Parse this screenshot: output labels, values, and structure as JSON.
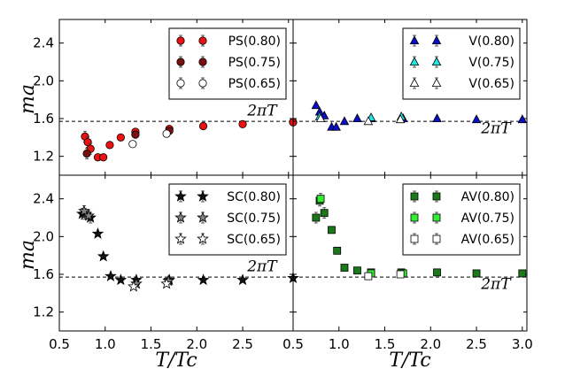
{
  "chart_data": [
    {
      "id": "tl",
      "type": "scatter",
      "ylabel": "ma",
      "xlabel": "",
      "xlim": [
        0.5,
        3.05
      ],
      "ylim": [
        1.0,
        2.65
      ],
      "xticks": [],
      "xtick_labels": [],
      "yticks": [
        1.2,
        1.6,
        2.0,
        2.4
      ],
      "ytick_labels": [
        "1.2",
        "1.6",
        "2.0",
        "2.4"
      ],
      "ref_line": {
        "y": 1.5708,
        "label": "2πT",
        "label_x": 2.55,
        "label_y": 1.635
      },
      "series": [
        {
          "name": "PS(0.80)",
          "marker": "circle",
          "color": "#ee1111",
          "points": [
            [
              0.78,
              1.41
            ],
            [
              0.81,
              1.35
            ],
            [
              0.84,
              1.28
            ],
            [
              0.92,
              1.19
            ],
            [
              0.98,
              1.19
            ],
            [
              1.05,
              1.32
            ],
            [
              1.17,
              1.4
            ],
            [
              1.33,
              1.46
            ],
            [
              1.7,
              1.49
            ],
            [
              2.07,
              1.52
            ],
            [
              2.5,
              1.54
            ],
            [
              3.05,
              1.56
            ]
          ]
        },
        {
          "name": "PS(0.75)",
          "marker": "circle",
          "color": "#7a1010",
          "points": [
            [
              0.8,
              1.23
            ],
            [
              1.33,
              1.43
            ],
            [
              1.7,
              1.47
            ]
          ]
        },
        {
          "name": "PS(0.65)",
          "marker": "circle",
          "color": "#ffffff",
          "points": [
            [
              1.3,
              1.33
            ],
            [
              1.67,
              1.44
            ]
          ]
        }
      ]
    },
    {
      "id": "tr",
      "type": "scatter",
      "ylabel": "",
      "xlabel": "",
      "xlim": [
        0.5,
        3.05
      ],
      "ylim": [
        1.0,
        2.65
      ],
      "xticks": [],
      "xtick_labels": [],
      "yticks": [],
      "ytick_labels": [],
      "ref_line": {
        "y": 1.5708,
        "label": "2πT",
        "label_x": 2.55,
        "label_y": 1.445
      },
      "series": [
        {
          "name": "V(0.80)",
          "marker": "triangle",
          "color": "#0b10c8",
          "points": [
            [
              0.75,
              1.74
            ],
            [
              0.79,
              1.67
            ],
            [
              0.84,
              1.63
            ],
            [
              0.92,
              1.51
            ],
            [
              0.97,
              1.51
            ],
            [
              1.06,
              1.57
            ],
            [
              1.2,
              1.6
            ],
            [
              1.35,
              1.6
            ],
            [
              1.7,
              1.6
            ],
            [
              2.07,
              1.6
            ],
            [
              2.5,
              1.59
            ],
            [
              3.0,
              1.59
            ]
          ]
        },
        {
          "name": "V(0.75)",
          "marker": "triangle",
          "color": "#22e6e6",
          "points": [
            [
              0.79,
              1.62
            ],
            [
              1.35,
              1.61
            ],
            [
              1.68,
              1.62
            ]
          ]
        },
        {
          "name": "V(0.65)",
          "marker": "triangle",
          "color": "#ffffff",
          "points": [
            [
              0.8,
              1.6
            ],
            [
              1.32,
              1.57
            ],
            [
              1.67,
              1.59
            ]
          ]
        }
      ]
    },
    {
      "id": "bl",
      "type": "scatter",
      "ylabel": "ma",
      "xlabel": "T/Tc",
      "xlim": [
        0.5,
        3.05
      ],
      "ylim": [
        1.0,
        2.65
      ],
      "xticks": [
        0.5,
        1.0,
        1.5,
        2.0,
        2.5
      ],
      "xtick_labels": [
        "0.5",
        "1.0",
        "1.5",
        "2.0",
        "2.5"
      ],
      "yticks": [
        1.2,
        1.6,
        2.0,
        2.4
      ],
      "ytick_labels": [
        "1.2",
        "1.6",
        "2.0",
        "2.4"
      ],
      "ref_line": {
        "y": 1.5708,
        "label": "2πT",
        "label_x": 2.55,
        "label_y": 1.635
      },
      "series": [
        {
          "name": "SC(0.80)",
          "marker": "star",
          "color": "#111111",
          "points": [
            [
              0.75,
              2.24
            ],
            [
              0.78,
              2.24
            ],
            [
              0.84,
              2.2
            ],
            [
              0.92,
              2.03
            ],
            [
              0.98,
              1.79
            ],
            [
              1.06,
              1.58
            ],
            [
              1.17,
              1.54
            ],
            [
              1.34,
              1.54
            ],
            [
              1.7,
              1.54
            ],
            [
              2.07,
              1.54
            ],
            [
              2.5,
              1.54
            ],
            [
              3.05,
              1.56
            ]
          ]
        },
        {
          "name": "SC(0.75)",
          "marker": "star",
          "color": "#808080",
          "points": [
            [
              0.77,
              2.27
            ],
            [
              0.82,
              2.22
            ],
            [
              1.34,
              1.5
            ],
            [
              1.69,
              1.53
            ]
          ]
        },
        {
          "name": "SC(0.65)",
          "marker": "star",
          "color": "#ffffff",
          "points": [
            [
              1.31,
              1.47
            ],
            [
              1.67,
              1.5
            ]
          ]
        }
      ]
    },
    {
      "id": "br",
      "type": "scatter",
      "ylabel": "",
      "xlabel": "T/Tc",
      "xlim": [
        0.5,
        3.05
      ],
      "ylim": [
        1.0,
        2.65
      ],
      "xticks": [
        0.5,
        1.0,
        1.5,
        2.0,
        2.5,
        3.0
      ],
      "xtick_labels": [
        "0.5",
        "1.0",
        "1.5",
        "2.0",
        "2.5",
        "3.0"
      ],
      "yticks": [],
      "ytick_labels": [],
      "ref_line": {
        "y": 1.5708,
        "label": "2πT",
        "label_x": 2.55,
        "label_y": 1.445
      },
      "series": [
        {
          "name": "AV(0.80)",
          "marker": "square",
          "color": "#1a7a1a",
          "points": [
            [
              0.75,
              2.2
            ],
            [
              0.79,
              2.38
            ],
            [
              0.84,
              2.25
            ],
            [
              0.92,
              2.07
            ],
            [
              0.98,
              1.85
            ],
            [
              1.06,
              1.67
            ],
            [
              1.2,
              1.64
            ],
            [
              1.35,
              1.62
            ],
            [
              1.68,
              1.62
            ],
            [
              2.07,
              1.62
            ],
            [
              2.5,
              1.61
            ],
            [
              3.0,
              1.61
            ]
          ]
        },
        {
          "name": "AV(0.75)",
          "marker": "square",
          "color": "#33ee33",
          "points": [
            [
              0.8,
              2.4
            ],
            [
              1.35,
              1.61
            ],
            [
              1.7,
              1.61
            ]
          ]
        },
        {
          "name": "AV(0.65)",
          "marker": "square",
          "color": "#ffffff",
          "points": [
            [
              1.32,
              1.58
            ],
            [
              1.67,
              1.6
            ]
          ]
        }
      ]
    }
  ]
}
